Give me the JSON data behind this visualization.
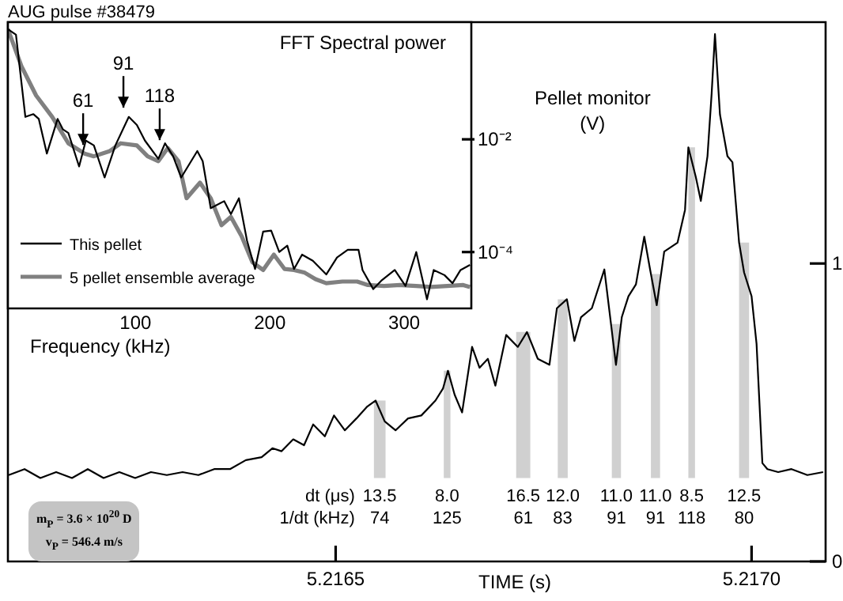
{
  "chart_data": [
    {
      "type": "line",
      "title": "AUG pulse #38479",
      "xlabel": "TIME (s)",
      "ylabel": "Pellet monitor (V)",
      "marker": "none",
      "x": [
        5.216107,
        5.216126,
        5.216145,
        5.216164,
        5.216183,
        5.216202,
        5.216221,
        5.21624,
        5.216259,
        5.216278,
        5.216297,
        5.216316,
        5.216335,
        5.216354,
        5.216373,
        5.216392,
        5.216411,
        5.216424,
        5.216435,
        5.216449,
        5.216462,
        5.216473,
        5.216487,
        5.216498,
        5.216511,
        5.216525,
        5.216538,
        5.216548,
        5.216559,
        5.216572,
        5.216587,
        5.216603,
        5.21662,
        5.216629,
        5.216635,
        5.216643,
        5.216652,
        5.216664,
        5.216673,
        5.216683,
        5.216692,
        5.216705,
        5.216719,
        5.21673,
        5.216743,
        5.216757,
        5.216766,
        5.216778,
        5.216787,
        5.216795,
        5.216808,
        5.216823,
        5.216837,
        5.216844,
        5.216852,
        5.216861,
        5.216871,
        5.216878,
        5.216886,
        5.216895,
        5.216911,
        5.21692,
        5.216924,
        5.216933,
        5.216939,
        5.216947,
        5.216952,
        5.216956,
        5.216962,
        5.216971,
        5.216977,
        5.216985,
        5.216991,
        5.217,
        5.217006,
        5.217013,
        5.217019,
        5.217032,
        5.217048,
        5.217067,
        5.217086
      ],
      "series": [
        {
          "color": "#000000",
          "values": [
            0.29,
            0.31,
            0.28,
            0.3,
            0.28,
            0.31,
            0.28,
            0.3,
            0.28,
            0.3,
            0.29,
            0.3,
            0.29,
            0.31,
            0.31,
            0.34,
            0.35,
            0.38,
            0.37,
            0.41,
            0.39,
            0.46,
            0.42,
            0.49,
            0.44,
            0.48,
            0.52,
            0.54,
            0.47,
            0.44,
            0.48,
            0.49,
            0.54,
            0.58,
            0.64,
            0.56,
            0.5,
            0.72,
            0.65,
            0.68,
            0.59,
            0.76,
            0.72,
            0.77,
            0.68,
            0.66,
            0.85,
            0.88,
            0.74,
            0.82,
            0.85,
            0.98,
            0.66,
            0.82,
            0.89,
            0.93,
            1.09,
            0.98,
            0.86,
            1.04,
            1.07,
            1.18,
            1.39,
            1.29,
            1.21,
            1.36,
            1.57,
            1.77,
            1.5,
            1.36,
            1.34,
            1.07,
            0.97,
            0.89,
            0.73,
            0.33,
            0.31,
            0.3,
            0.31,
            0.29,
            0.3
          ]
        }
      ],
      "xlim": [
        5.216106,
        5.217089
      ],
      "xticks": [
        5.2165,
        {
          "value": 5.217,
          "label": "5.2170"
        }
      ],
      "ylim": [
        0,
        1.81
      ],
      "yticks": [
        0,
        1
      ],
      "bands": [
        {
          "axis": "x",
          "from": 5.216546,
          "to": 5.21656,
          "label": "13.5\n74",
          "color": "#d0d0d0"
        },
        {
          "axis": "x",
          "from": 5.21663,
          "to": 5.216638,
          "label": "8.0\n125",
          "color": "#d0d0d0"
        },
        {
          "axis": "x",
          "from": 5.216717,
          "to": 5.216734,
          "label": "16.5\n61",
          "color": "#d0d0d0"
        },
        {
          "axis": "x",
          "from": 5.216767,
          "to": 5.216779,
          "label": "12.0\n83",
          "color": "#d0d0d0"
        },
        {
          "axis": "x",
          "from": 5.216832,
          "to": 5.216843,
          "label": "11.0\n91",
          "color": "#d0d0d0"
        },
        {
          "axis": "x",
          "from": 5.216879,
          "to": 5.21689,
          "label": "11.0\n91",
          "color": "#d0d0d0"
        },
        {
          "axis": "x",
          "from": 5.216924,
          "to": 5.216932,
          "label": "8.5\n118",
          "color": "#d0d0d0"
        },
        {
          "axis": "x",
          "from": 5.216985,
          "to": 5.216997,
          "label": "12.5\n80",
          "color": "#d0d0d0"
        }
      ],
      "annotations": [
        "dt (μs)",
        "1/dt (kHz)",
        "m$_{P}$ = 3.6 × 10$^{20}$ D",
        "v$_{P}$ = 546.4 m/s"
      ]
    },
    {
      "type": "line",
      "title": "FFT Spectral power",
      "xlabel": "Frequency (kHz)",
      "log": "y",
      "legend": "bottom left",
      "marker": "none",
      "xlim": [
        5,
        350
      ],
      "xticks": [
        100,
        200,
        300
      ],
      "ylim": [
        1e-05,
        1.2
      ],
      "yticks": [
        {
          "value": 0.01,
          "label": "10⁻²"
        },
        {
          "value": 0.0001,
          "label": "10⁻⁴"
        }
      ],
      "series": [
        {
          "name": "This pellet",
          "color": "#000000",
          "x": [
            5,
            11,
            18,
            24,
            28,
            34,
            42,
            46,
            50,
            58,
            63,
            69,
            77,
            85,
            95,
            101,
            107,
            117,
            122,
            128,
            134,
            146,
            150,
            156,
            166,
            171,
            177,
            183,
            189,
            195,
            201,
            207,
            213,
            218,
            224,
            232,
            242,
            250,
            258,
            266,
            269,
            277,
            283,
            293,
            301,
            309,
            317,
            322,
            330,
            336,
            342,
            349
          ],
          "values": [
            0.9,
            0.72,
            0.025,
            0.028,
            0.023,
            0.0056,
            0.023,
            0.015,
            0.013,
            0.0033,
            0.0095,
            0.0078,
            0.0021,
            0.0078,
            0.025,
            0.018,
            0.0095,
            0.0045,
            0.0085,
            0.005,
            0.0021,
            0.0062,
            0.0041,
            0.0006,
            0.0008,
            0.00047,
            0.0009,
            0.00016,
            5e-05,
            0.00023,
            0.00024,
            0.0001,
            0.00013,
            5e-05,
            9e-05,
            7e-05,
            4e-05,
            8e-05,
            0.00011,
            0.00011,
            4.8e-05,
            2.2e-05,
            3.1e-05,
            4.8e-05,
            2.5e-05,
            0.0001,
            1.45e-05,
            4.8e-05,
            3.9e-05,
            2.8e-05,
            4.8e-05,
            5.9e-05
          ]
        },
        {
          "name": "5 pellet ensemble average",
          "color": "#808080",
          "x": [
            5,
            15,
            26,
            38,
            50,
            62,
            69,
            81,
            89,
            101,
            109,
            117,
            124,
            132,
            138,
            148,
            156,
            164,
            171,
            179,
            187,
            195,
            203,
            211,
            218,
            226,
            234,
            242,
            254,
            265,
            273,
            285,
            297,
            309,
            320,
            332,
            344,
            349
          ],
          "values": [
            0.9,
            0.2,
            0.06,
            0.025,
            0.0085,
            0.0056,
            0.005,
            0.0062,
            0.0085,
            0.0078,
            0.005,
            0.0041,
            0.007,
            0.0041,
            0.0009,
            0.0017,
            0.0009,
            0.0003,
            0.00042,
            0.00019,
            6.6e-05,
            4.8e-05,
            9e-05,
            5e-05,
            4.8e-05,
            4.3e-05,
            3.3e-05,
            2.8e-05,
            3e-05,
            3e-05,
            2.6e-05,
            2.5e-05,
            2.6e-05,
            2.5e-05,
            2.4e-05,
            2.5e-05,
            2.6e-05,
            2.4e-05
          ]
        }
      ],
      "annotations": [
        {
          "text": "61",
          "x": 61,
          "y": 0.007
        },
        {
          "text": "91",
          "x": 91,
          "y": 0.032
        },
        {
          "text": "118",
          "x": 118,
          "y": 0.0085
        }
      ]
    }
  ]
}
